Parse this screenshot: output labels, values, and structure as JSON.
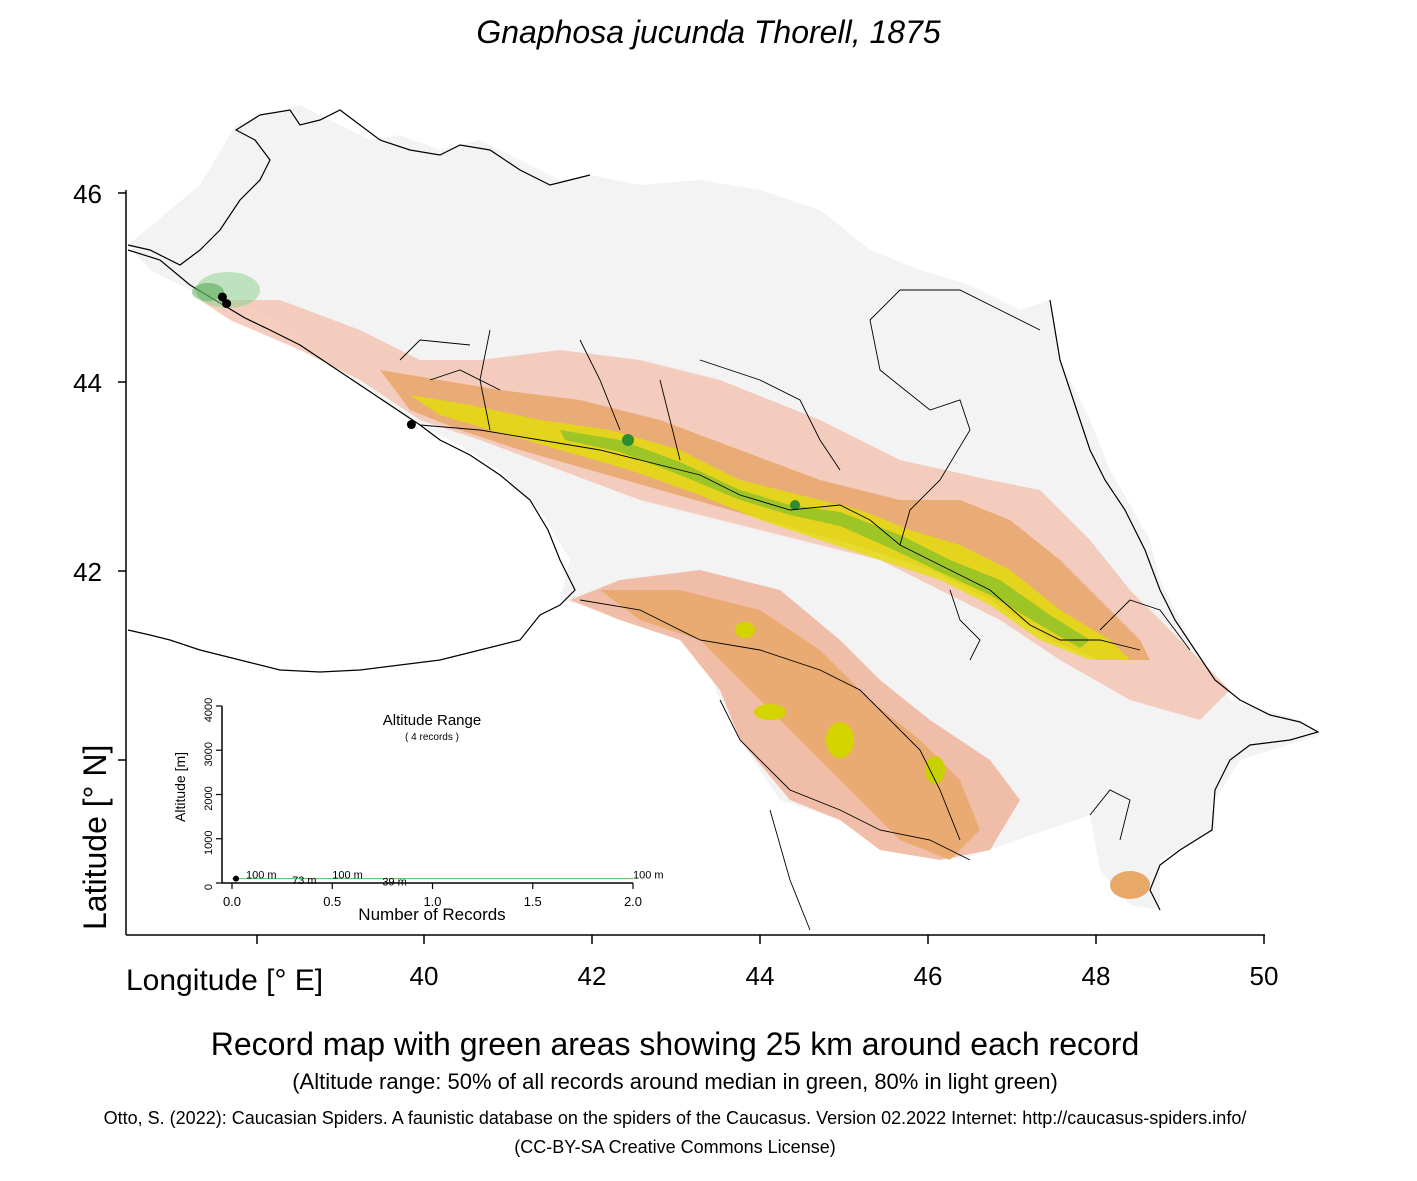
{
  "title": "Gnaphosa jucunda Thorell, 1875",
  "map": {
    "ylabel": "Latitude [° N]",
    "xlabel": "Longitude [° E]",
    "lon_range": [
      36.4,
      50.0
    ],
    "lat_range": [
      38.2,
      46.2
    ],
    "x_ticks": [
      "40",
      "42",
      "44",
      "46",
      "48",
      "50"
    ],
    "y_ticks": [
      "46",
      "44",
      "42"
    ],
    "records": [
      {
        "lon": 37.6,
        "lat": 44.9
      },
      {
        "lon": 37.65,
        "lat": 44.83
      },
      {
        "lon": 39.85,
        "lat": 43.55
      }
    ],
    "colors": {
      "lowland": "#f2f2f2",
      "foothill": "#f0b4a0",
      "midrange": "#e8a868",
      "high": "#e6e600",
      "peak": "#2e8b2e",
      "record": "#000000"
    }
  },
  "inset": {
    "title": "Altitude Range",
    "subtitle": "( 4 records )",
    "ylabel": "Altitude [m]",
    "xlabel": "Number of Records",
    "x_ticks": [
      "0.0",
      "0.5",
      "1.0",
      "1.5",
      "2.0"
    ],
    "y_ticks": [
      "0",
      "1000",
      "2000",
      "3000",
      "4000"
    ],
    "value_labels": [
      "100 m",
      "73 m",
      "100 m",
      "39 m",
      "100 m"
    ],
    "line_color": "#66cc66"
  },
  "chart_data": {
    "type": "scatter",
    "x": [
      0.05,
      0.3,
      0.5,
      0.75,
      2.0
    ],
    "y": [
      100,
      73,
      100,
      39,
      100
    ],
    "xlabel": "Number of Records",
    "ylabel": "Altitude [m]",
    "xlim": [
      0,
      2
    ],
    "ylim": [
      0,
      4000
    ]
  },
  "caption": {
    "main": "Record map with green areas showing 25 km around each record",
    "sub": "(Altitude range: 50% of all records around median in green, 80% in light green)",
    "citation": "Otto, S. (2022): Caucasian Spiders. A faunistic database on the spiders of the Caucasus. Version 02.2022 Internet: http://caucasus-spiders.info/",
    "license": "(CC-BY-SA Creative Commons License)"
  }
}
